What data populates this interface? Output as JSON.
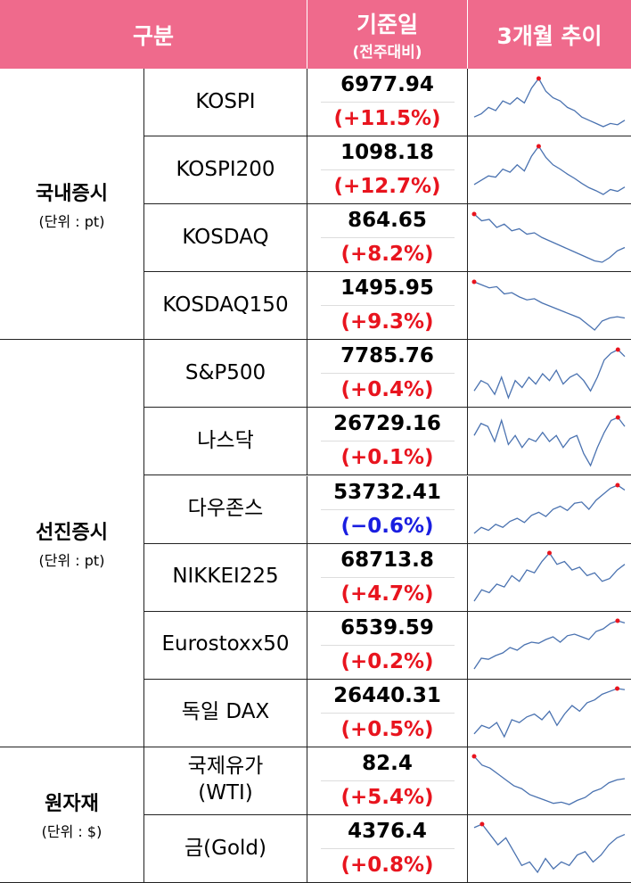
{
  "header": {
    "category": "구분",
    "base_date": "기준일",
    "base_date_note": "(전주대비)",
    "trend": "3개월 추이"
  },
  "groups": [
    {
      "label": "국내증시",
      "unit": "(단위 : pt)",
      "rows": [
        {
          "name": "KOSPI",
          "value": "6977.94",
          "change": "(+11.5%)",
          "trend": [
            40,
            45,
            55,
            50,
            65,
            60,
            70,
            62,
            85,
            100,
            80,
            70,
            65,
            55,
            50,
            40,
            35,
            30,
            25,
            30,
            28,
            35
          ]
        },
        {
          "name": "KOSPI200",
          "value": "1098.18",
          "change": "(+12.7%)",
          "trend": [
            38,
            45,
            52,
            50,
            63,
            58,
            70,
            60,
            84,
            100,
            82,
            70,
            63,
            55,
            48,
            40,
            33,
            28,
            22,
            30,
            27,
            34
          ]
        },
        {
          "name": "KOSDAQ",
          "value": "864.65",
          "change": "(+8.2%)",
          "trend": [
            100,
            90,
            92,
            80,
            85,
            75,
            78,
            70,
            72,
            65,
            60,
            55,
            50,
            45,
            40,
            35,
            30,
            28,
            35,
            45,
            50
          ]
        },
        {
          "name": "KOSDAQ150",
          "value": "1495.95",
          "change": "(+9.3%)",
          "trend": [
            100,
            95,
            90,
            92,
            80,
            82,
            75,
            70,
            72,
            65,
            60,
            55,
            50,
            45,
            40,
            30,
            20,
            35,
            40,
            42,
            40
          ]
        }
      ]
    },
    {
      "label": "선진증시",
      "unit": "(단위 : pt)",
      "rows": [
        {
          "name": "S&P500",
          "value": "7785.76",
          "change": "(+0.4%)",
          "trend": [
            40,
            55,
            50,
            35,
            60,
            30,
            55,
            45,
            60,
            50,
            65,
            55,
            70,
            50,
            60,
            65,
            55,
            40,
            60,
            85,
            95,
            100,
            90
          ]
        },
        {
          "name": "나스닥",
          "value": "26729.16",
          "change": "(+0.1%)",
          "trend": [
            70,
            90,
            85,
            60,
            95,
            55,
            70,
            50,
            65,
            60,
            75,
            60,
            70,
            50,
            65,
            70,
            40,
            20,
            50,
            75,
            95,
            100,
            85
          ]
        },
        {
          "name": "다우존스",
          "value": "53732.41",
          "change": "(−0.6%)",
          "trend": [
            20,
            30,
            25,
            35,
            30,
            40,
            45,
            38,
            50,
            55,
            48,
            60,
            65,
            58,
            70,
            72,
            60,
            75,
            85,
            95,
            100,
            92
          ]
        },
        {
          "name": "NIKKEI225",
          "value": "68713.8",
          "change": "(+4.7%)",
          "trend": [
            15,
            35,
            30,
            45,
            40,
            60,
            50,
            70,
            65,
            85,
            100,
            80,
            85,
            70,
            75,
            60,
            65,
            50,
            55,
            70,
            80
          ]
        },
        {
          "name": "Eurostoxx50",
          "value": "6539.59",
          "change": "(+0.2%)",
          "trend": [
            10,
            30,
            28,
            35,
            40,
            50,
            45,
            55,
            60,
            58,
            65,
            70,
            60,
            72,
            75,
            70,
            65,
            80,
            85,
            95,
            100,
            96
          ]
        },
        {
          "name": "독일 DAX",
          "value": "26440.31",
          "change": "(+0.5%)",
          "trend": [
            20,
            35,
            30,
            40,
            15,
            45,
            40,
            50,
            55,
            45,
            60,
            35,
            55,
            70,
            60,
            75,
            80,
            90,
            95,
            100,
            98
          ]
        }
      ]
    },
    {
      "label": "원자재",
      "unit": "(단위 : $)",
      "rows": [
        {
          "name": "국제유가\n(WTI)",
          "value": "82.4",
          "change": "(+5.4%)",
          "trend": [
            100,
            85,
            80,
            70,
            60,
            50,
            45,
            35,
            30,
            25,
            20,
            22,
            18,
            25,
            30,
            40,
            45,
            55,
            60,
            62
          ]
        },
        {
          "name": "금(Gold)",
          "value": "4376.4",
          "change": "(+0.8%)",
          "trend": [
            95,
            100,
            85,
            70,
            80,
            60,
            40,
            45,
            30,
            50,
            35,
            45,
            40,
            55,
            60,
            45,
            55,
            70,
            80,
            85
          ]
        }
      ]
    }
  ]
}
